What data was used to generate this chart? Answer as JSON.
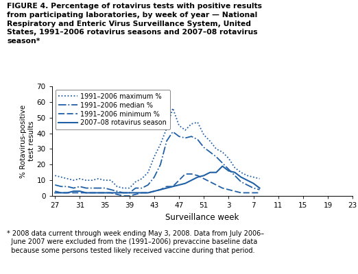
{
  "title_line1": "FIGURE 4. Percentage of rotavirus tests with positive results",
  "title_line2": "from participating laboratories, by week of year — National",
  "title_line3": "Respiratory and Enteric Virus Surveillance System, United",
  "title_line4": "States, 1991–2006 rotavirus seasons and 2007–08 rotavirus",
  "title_line5": "season*",
  "footnote_line1": "* 2008 data current through week ending May 3, 2008. Data from July 2006–",
  "footnote_line2": "  June 2007 were excluded from the (1991–2006) prevaccine baseline data",
  "footnote_line3": "  because some persons tested likely received vaccine during that period.",
  "xlabel": "Surveillance week",
  "ylabel": "% Rotavirus-positive\ntest results",
  "ylim": [
    0,
    70
  ],
  "yticks": [
    0,
    10,
    20,
    30,
    40,
    50,
    60,
    70
  ],
  "xtick_labels": [
    "27",
    "31",
    "35",
    "39",
    "43",
    "47",
    "51",
    "3",
    "7",
    "11",
    "15",
    "19",
    "23"
  ],
  "color": "#1F5FA6",
  "legend_entries": [
    "1991–2006 maximum %",
    "1991–2006 median %",
    "1991–2006 minimum %",
    "2007–08 rotavirus season"
  ],
  "max_data": [
    13,
    12,
    11,
    10,
    11,
    10,
    10,
    11,
    10,
    10,
    6,
    5,
    5,
    9,
    11,
    15,
    25,
    33,
    43,
    56,
    45,
    42,
    46,
    47,
    39,
    35,
    30,
    28,
    24,
    18,
    15,
    13,
    12,
    11
  ],
  "median_data": [
    7,
    6,
    6,
    5,
    6,
    5,
    5,
    5,
    5,
    4,
    3,
    2,
    2,
    5,
    5,
    7,
    12,
    20,
    35,
    41,
    38,
    37,
    38,
    36,
    31,
    28,
    25,
    21,
    17,
    13,
    9,
    7,
    5,
    4
  ],
  "min_data": [
    3,
    2,
    2,
    2,
    2,
    2,
    2,
    2,
    2,
    2,
    1,
    0,
    0,
    1,
    2,
    2,
    3,
    4,
    6,
    6,
    10,
    14,
    14,
    13,
    11,
    9,
    7,
    5,
    4,
    3,
    2,
    2,
    2,
    2
  ],
  "season_data": [
    2,
    2,
    2,
    3,
    3,
    2,
    2,
    2,
    2,
    2,
    2,
    2,
    2,
    2,
    2,
    2,
    3,
    4,
    5,
    6,
    7,
    8,
    10,
    12,
    13,
    15,
    15,
    19,
    16,
    15,
    12,
    10,
    8,
    5
  ],
  "n_points": 34
}
